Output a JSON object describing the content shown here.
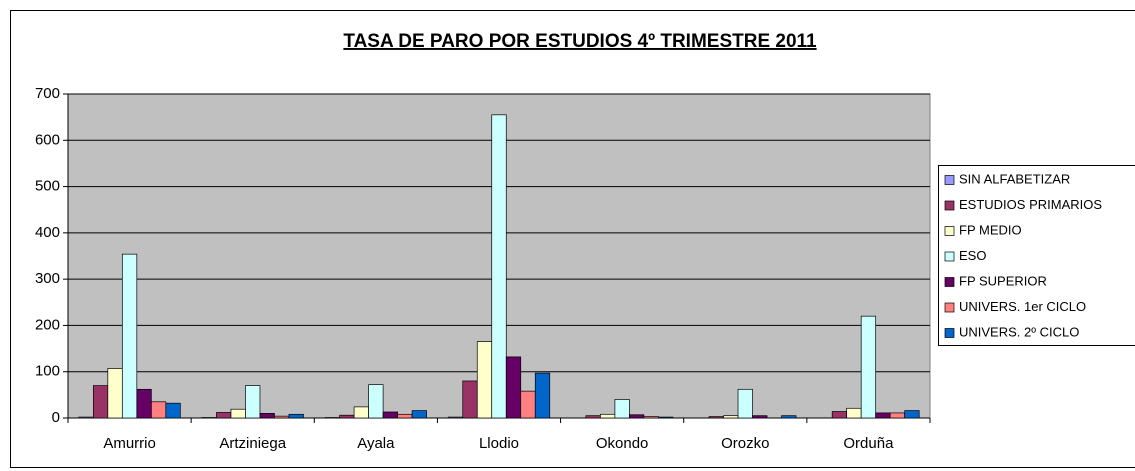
{
  "chart_data": {
    "type": "bar",
    "title": "TASA DE PARO POR ESTUDIOS 4º TRIMESTRE 2011",
    "categories": [
      "Amurrio",
      "Artziniega",
      "Ayala",
      "Llodio",
      "Okondo",
      "Orozko",
      "Orduña"
    ],
    "series": [
      {
        "name": "SIN ALFABETIZAR",
        "color": "#9999ff",
        "values": [
          2,
          1,
          1,
          2,
          0,
          0,
          0
        ]
      },
      {
        "name": "ESTUDIOS PRIMARIOS",
        "color": "#993366",
        "values": [
          70,
          12,
          6,
          80,
          5,
          3,
          14
        ]
      },
      {
        "name": "FP MEDIO",
        "color": "#ffffcc",
        "values": [
          107,
          19,
          24,
          165,
          8,
          5,
          21
        ]
      },
      {
        "name": "ESO",
        "color": "#ccffff",
        "values": [
          354,
          70,
          72,
          655,
          40,
          62,
          220
        ]
      },
      {
        "name": "FP SUPERIOR",
        "color": "#660066",
        "values": [
          62,
          10,
          13,
          132,
          7,
          5,
          11
        ]
      },
      {
        "name": "UNIVERS. 1er CICLO",
        "color": "#ff8080",
        "values": [
          35,
          4,
          8,
          58,
          3,
          0,
          11
        ]
      },
      {
        "name": "UNIVERS. 2º CICLO",
        "color": "#0066cc",
        "values": [
          32,
          8,
          16,
          97,
          2,
          5,
          16
        ]
      }
    ],
    "ylim": [
      0,
      700
    ],
    "yticks": [
      0,
      100,
      200,
      300,
      400,
      500,
      600,
      700
    ],
    "grid": true,
    "legend": "right"
  }
}
